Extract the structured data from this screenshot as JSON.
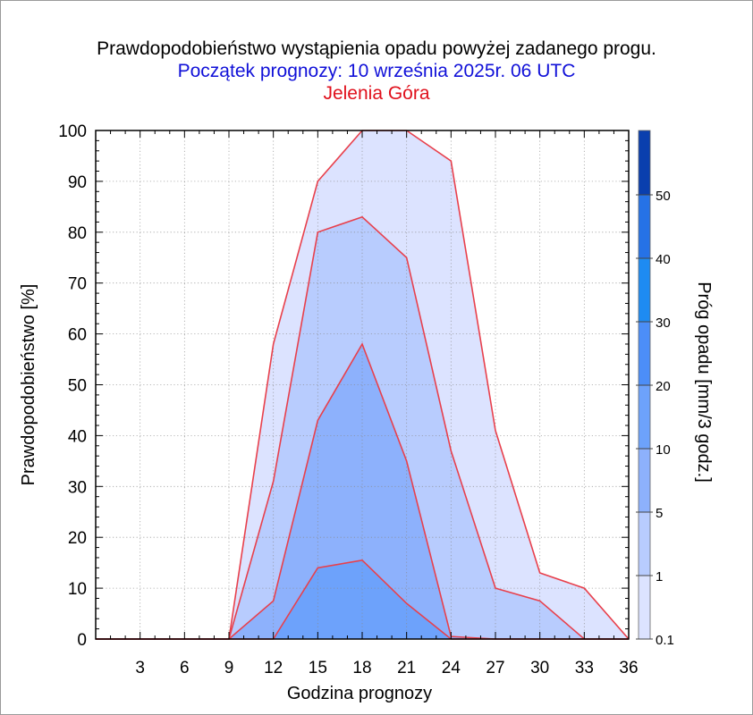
{
  "header": {
    "title": "Prawdopodobieństwo wystąpienia opadu powyżej zadanego progu.",
    "subtitle": "Początek prognozy: 10 września 2025r. 06 UTC",
    "location": "Jelenia Góra"
  },
  "chart_data": {
    "type": "area",
    "title": "Prawdopodobieństwo wystąpienia opadu powyżej zadanego progu.",
    "xlabel": "Godzina prognozy",
    "ylabel": "Prawdopodobieństwo [%]",
    "xlim": [
      0,
      36
    ],
    "ylim": [
      0,
      100
    ],
    "x_ticks": [
      3,
      6,
      9,
      12,
      15,
      18,
      21,
      24,
      27,
      30,
      33,
      36
    ],
    "y_ticks": [
      0,
      10,
      20,
      30,
      40,
      50,
      60,
      70,
      80,
      90,
      100
    ],
    "x": [
      0,
      3,
      6,
      9,
      12,
      15,
      18,
      21,
      24,
      27,
      30,
      33,
      36
    ],
    "series": [
      {
        "name": "0.1",
        "color": "#dce3ff",
        "values": [
          0,
          0,
          0,
          0,
          58,
          90,
          100,
          100,
          94,
          41,
          13,
          10,
          0
        ]
      },
      {
        "name": "1",
        "color": "#b8ccfe",
        "values": [
          0,
          0,
          0,
          0,
          31,
          80,
          83,
          75,
          37,
          10,
          7.5,
          0,
          0
        ]
      },
      {
        "name": "5",
        "color": "#8db1fc",
        "values": [
          0,
          0,
          0,
          0,
          7.5,
          43,
          58,
          35,
          0.5,
          0,
          0,
          0,
          0
        ]
      },
      {
        "name": "10",
        "color": "#6da2fb",
        "values": [
          0,
          0,
          0,
          0,
          0,
          14,
          15.5,
          7,
          0,
          0,
          0,
          0,
          0
        ]
      }
    ],
    "line_color": "#e8404c",
    "grid": true,
    "colorbar": {
      "title": "Próg opadu [mm/3 godz.]",
      "labels": [
        "0.1",
        "1",
        "5",
        "10",
        "20",
        "30",
        "40",
        "50"
      ],
      "colors": [
        "#dce3ff",
        "#b8ccfe",
        "#8db1fc",
        "#6da2fb",
        "#4c8ef8",
        "#1e8bf2",
        "#2672e6",
        "#0f5fd6",
        "#0a3fae"
      ]
    }
  }
}
